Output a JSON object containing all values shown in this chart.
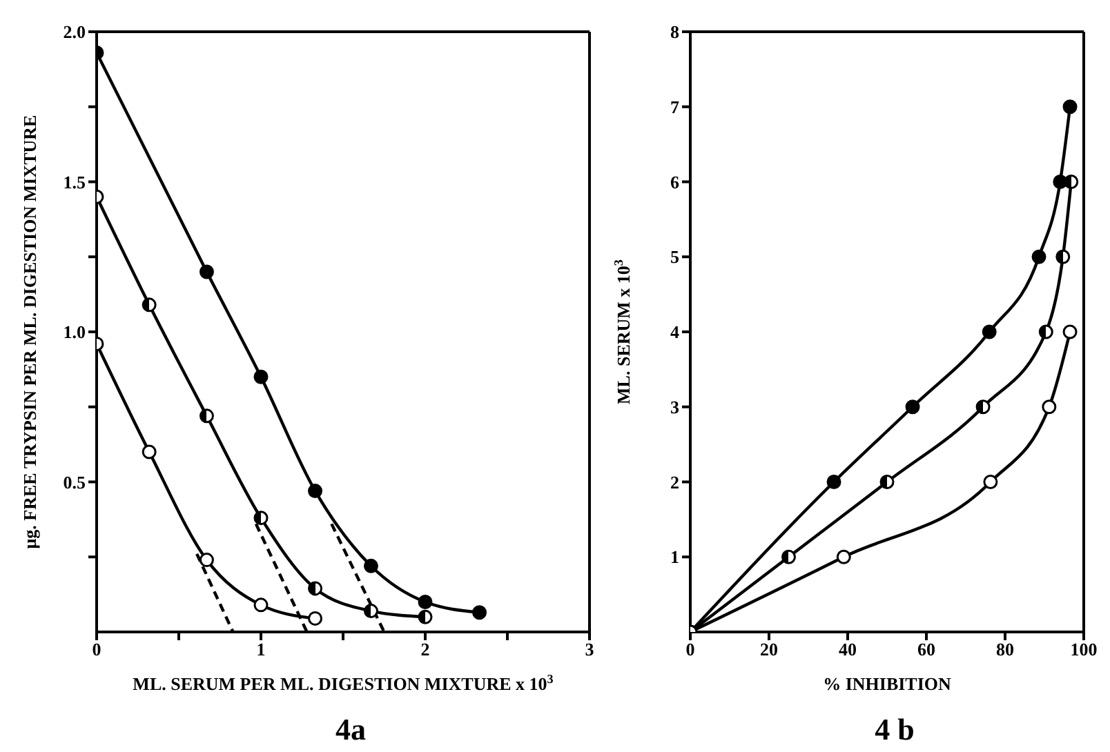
{
  "chart_data": [
    {
      "type": "line",
      "xlabel": "ML. SERUM PER ML. DIGESTION MIXTURE x 10$^{3}$",
      "ylabel": "μg. FREE TRYPSIN PER ML. DIGESTION MIXTURE",
      "annotations": [
        "4a"
      ],
      "xlim": [
        0,
        3
      ],
      "ylim": [
        0,
        2
      ],
      "xticks": [
        0,
        {
          "value": 0.5,
          "label": null
        },
        1,
        {
          "value": 1.5,
          "label": null
        },
        2,
        {
          "value": 2.5,
          "label": null
        },
        3
      ],
      "yticks": [
        {
          "value": 0.25,
          "label": null
        },
        {
          "value": 0.5,
          "label": "0.5"
        },
        {
          "value": 0.75,
          "label": null
        },
        {
          "value": 1,
          "label": "1.0"
        },
        {
          "value": 1.25,
          "label": null
        },
        {
          "value": 1.5,
          "label": "1.5"
        },
        {
          "value": 1.75,
          "label": null
        },
        {
          "value": 2,
          "label": "2.0"
        }
      ],
      "marker": "circle",
      "line_style": "solid",
      "series": [
        {
          "color": "#000000",
          "x": [
            0,
            0.67,
            1.0,
            1.33,
            1.67,
            2.0,
            2.33
          ],
          "values": [
            1.93,
            1.2,
            0.85,
            0.47,
            0.22,
            0.1,
            0.065
          ]
        },
        {
          "color": "#000000",
          "x": [
            0,
            0.32,
            0.67,
            1.0,
            1.33,
            1.67,
            2.0
          ],
          "values": [
            1.45,
            1.09,
            0.72,
            0.38,
            0.145,
            0.07,
            0.05
          ]
        },
        {
          "color": "#000000",
          "x": [
            0,
            0.32,
            0.67,
            1.0,
            1.33
          ],
          "values": [
            0.96,
            0.6,
            0.24,
            0.09,
            0.045
          ]
        },
        {
          "color": "#000000",
          "type": "line",
          "marker": "none",
          "line_style": "dashed",
          "x": [
            0.61,
            0.83
          ],
          "values": [
            0.26,
            0
          ]
        },
        {
          "color": "#000000",
          "type": "line",
          "marker": "none",
          "line_style": "dashed",
          "x": [
            0.97,
            1.28
          ],
          "values": [
            0.36,
            0
          ]
        },
        {
          "color": "#000000",
          "type": "line",
          "marker": "none",
          "line_style": "dashed",
          "x": [
            1.43,
            1.75
          ],
          "values": [
            0.36,
            0
          ]
        }
      ]
    },
    {
      "type": "line",
      "xlabel": "% INHIBITION",
      "ylabel": "ML. SERUM x 10$^{3}$",
      "annotations": [
        "4 b"
      ],
      "xlim": [
        0,
        100
      ],
      "ylim": [
        0,
        8
      ],
      "xticks": [
        0,
        20,
        40,
        60,
        80,
        100
      ],
      "yticks": [
        1,
        2,
        3,
        4,
        5,
        6,
        7,
        8
      ],
      "marker": "circle",
      "line_style": "solid",
      "series": [
        {
          "color": "#000000",
          "x": [
            0,
            36.5,
            56.5,
            76,
            88.6,
            94,
            96.5
          ],
          "values": [
            0,
            2,
            3,
            4,
            5,
            6,
            7
          ]
        },
        {
          "color": "#000000",
          "x": [
            0,
            25,
            50,
            74.4,
            90.4,
            94.7,
            96.8
          ],
          "values": [
            0,
            1,
            2,
            3,
            4,
            5,
            6
          ]
        },
        {
          "color": "#000000",
          "x": [
            0,
            39,
            76.3,
            91.2,
            96.5
          ],
          "values": [
            0,
            1,
            2,
            3,
            4
          ]
        }
      ]
    }
  ]
}
